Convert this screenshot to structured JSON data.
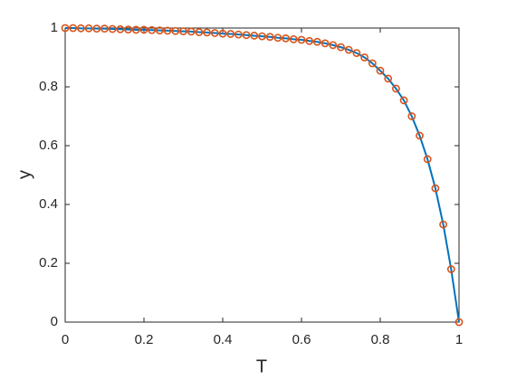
{
  "chart_data": {
    "type": "line",
    "x_label": "T",
    "y_label": "y",
    "x": [
      0,
      0.02,
      0.04,
      0.06,
      0.08,
      0.1,
      0.12,
      0.14,
      0.16,
      0.18,
      0.2,
      0.22,
      0.24,
      0.26,
      0.28,
      0.3,
      0.32,
      0.34,
      0.36,
      0.38,
      0.4,
      0.42,
      0.44,
      0.46,
      0.48,
      0.5,
      0.52,
      0.54,
      0.56,
      0.58,
      0.6,
      0.62,
      0.64,
      0.66,
      0.68,
      0.7,
      0.72,
      0.74,
      0.76,
      0.78,
      0.8,
      0.82,
      0.84,
      0.86,
      0.88,
      0.9,
      0.92,
      0.94,
      0.96,
      0.98,
      1
    ],
    "series": [
      {
        "name": "line",
        "style": "line",
        "color": "#0072BD",
        "values": [
          1,
          1,
          0.999,
          0.999,
          0.998,
          0.998,
          0.997,
          0.996,
          0.995,
          0.994,
          0.994,
          0.993,
          0.992,
          0.991,
          0.99,
          0.989,
          0.988,
          0.986,
          0.985,
          0.983,
          0.981,
          0.98,
          0.978,
          0.976,
          0.974,
          0.972,
          0.97,
          0.967,
          0.965,
          0.962,
          0.96,
          0.956,
          0.953,
          0.948,
          0.942,
          0.935,
          0.926,
          0.915,
          0.9,
          0.88,
          0.855,
          0.828,
          0.794,
          0.754,
          0.7,
          0.634,
          0.554,
          0.455,
          0.332,
          0.18,
          0
        ]
      },
      {
        "name": "markers",
        "style": "marker",
        "color": "#D95319",
        "values": [
          1,
          1,
          0.999,
          0.999,
          0.998,
          0.998,
          0.997,
          0.996,
          0.995,
          0.994,
          0.994,
          0.993,
          0.992,
          0.991,
          0.99,
          0.989,
          0.988,
          0.986,
          0.985,
          0.983,
          0.981,
          0.98,
          0.978,
          0.976,
          0.974,
          0.972,
          0.97,
          0.967,
          0.965,
          0.962,
          0.96,
          0.956,
          0.953,
          0.948,
          0.942,
          0.935,
          0.926,
          0.915,
          0.9,
          0.88,
          0.855,
          0.828,
          0.794,
          0.754,
          0.7,
          0.634,
          0.554,
          0.455,
          0.332,
          0.18,
          0
        ]
      }
    ],
    "xlim": [
      0,
      1
    ],
    "ylim": [
      0,
      1
    ],
    "xticks": [
      0,
      0.2,
      0.4,
      0.6,
      0.8,
      1
    ],
    "yticks": [
      0,
      0.2,
      0.4,
      0.6,
      0.8,
      1
    ]
  }
}
